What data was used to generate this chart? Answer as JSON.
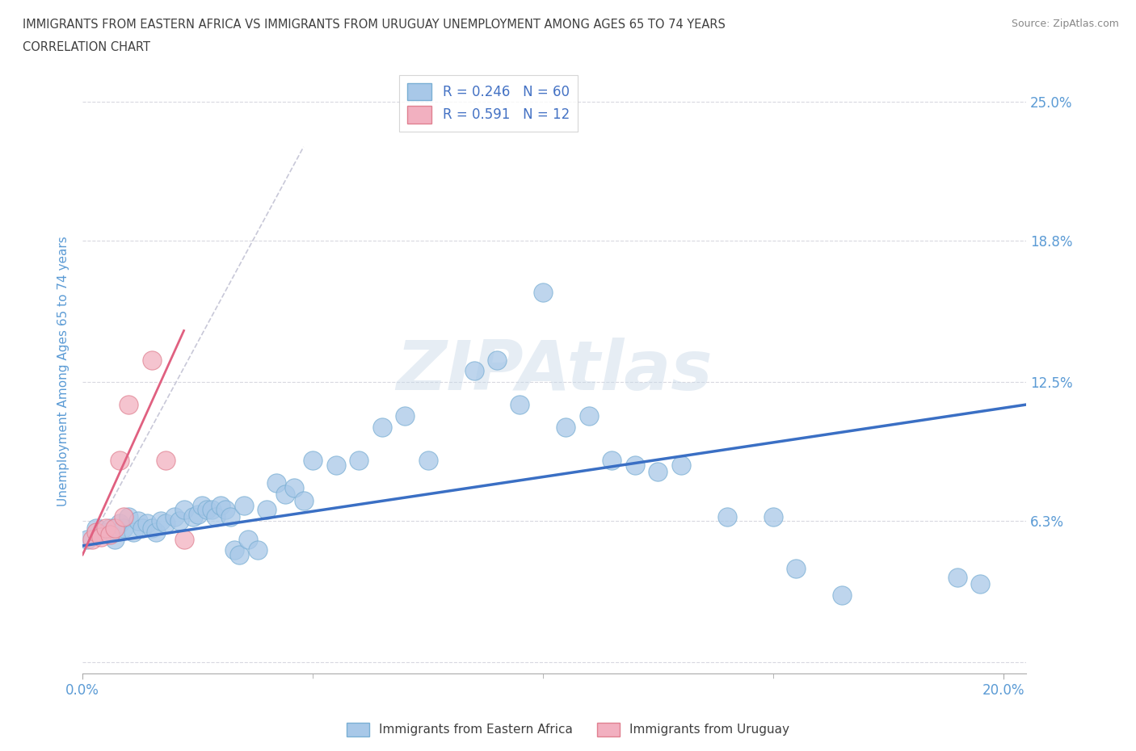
{
  "title_line1": "IMMIGRANTS FROM EASTERN AFRICA VS IMMIGRANTS FROM URUGUAY UNEMPLOYMENT AMONG AGES 65 TO 74 YEARS",
  "title_line2": "CORRELATION CHART",
  "source": "Source: ZipAtlas.com",
  "ylabel": "Unemployment Among Ages 65 to 74 years",
  "watermark": "ZIPAtlas",
  "xlim": [
    0.0,
    0.205
  ],
  "ylim": [
    -0.005,
    0.265
  ],
  "yticks": [
    0.0,
    0.063,
    0.125,
    0.188,
    0.25
  ],
  "ytick_labels_right": [
    "",
    "6.3%",
    "12.5%",
    "18.8%",
    "25.0%"
  ],
  "xticks": [
    0.0,
    0.2
  ],
  "xtick_labels": [
    "0.0%",
    "20.0%"
  ],
  "xtick_minor": [
    0.05,
    0.1,
    0.15
  ],
  "r_blue": "0.246",
  "n_blue": "60",
  "r_pink": "0.591",
  "n_pink": "12",
  "color_blue": "#a8c8e8",
  "color_blue_edge": "#7aafd4",
  "color_pink": "#f2b0c0",
  "color_pink_edge": "#e08090",
  "color_trendline_blue": "#3a6fc4",
  "color_trendline_pink": "#e06080",
  "color_dashed_trendline": "#c8c8d8",
  "title_color": "#404040",
  "tick_label_color": "#5b9bd5",
  "legend_text_color": "#4472c4",
  "blue_scatter_x": [
    0.001,
    0.003,
    0.005,
    0.006,
    0.007,
    0.008,
    0.009,
    0.01,
    0.011,
    0.012,
    0.013,
    0.014,
    0.015,
    0.016,
    0.017,
    0.018,
    0.02,
    0.021,
    0.022,
    0.024,
    0.025,
    0.026,
    0.027,
    0.028,
    0.029,
    0.03,
    0.031,
    0.032,
    0.033,
    0.034,
    0.035,
    0.036,
    0.038,
    0.04,
    0.042,
    0.044,
    0.046,
    0.048,
    0.05,
    0.055,
    0.06,
    0.065,
    0.07,
    0.075,
    0.085,
    0.09,
    0.095,
    0.1,
    0.105,
    0.11,
    0.115,
    0.12,
    0.125,
    0.13,
    0.14,
    0.15,
    0.155,
    0.165,
    0.19,
    0.195
  ],
  "blue_scatter_y": [
    0.055,
    0.06,
    0.058,
    0.06,
    0.055,
    0.062,
    0.06,
    0.065,
    0.058,
    0.063,
    0.06,
    0.062,
    0.06,
    0.058,
    0.063,
    0.062,
    0.065,
    0.063,
    0.068,
    0.065,
    0.066,
    0.07,
    0.068,
    0.068,
    0.065,
    0.07,
    0.068,
    0.065,
    0.05,
    0.048,
    0.07,
    0.055,
    0.05,
    0.068,
    0.08,
    0.075,
    0.078,
    0.072,
    0.09,
    0.088,
    0.09,
    0.105,
    0.11,
    0.09,
    0.13,
    0.135,
    0.115,
    0.165,
    0.105,
    0.11,
    0.09,
    0.088,
    0.085,
    0.088,
    0.065,
    0.065,
    0.042,
    0.03,
    0.038,
    0.035
  ],
  "pink_scatter_x": [
    0.002,
    0.003,
    0.004,
    0.005,
    0.006,
    0.007,
    0.008,
    0.009,
    0.01,
    0.015,
    0.018,
    0.022
  ],
  "pink_scatter_y": [
    0.055,
    0.058,
    0.056,
    0.06,
    0.057,
    0.06,
    0.09,
    0.065,
    0.115,
    0.135,
    0.09,
    0.055
  ],
  "blue_trend_x": [
    0.0,
    0.205
  ],
  "blue_trend_y": [
    0.052,
    0.115
  ],
  "pink_trend_x": [
    0.0,
    0.022
  ],
  "pink_trend_y": [
    0.048,
    0.148
  ],
  "dashed_trend_x": [
    0.0,
    0.048
  ],
  "dashed_trend_y": [
    0.048,
    0.23
  ],
  "grid_color": "#d8d8e0",
  "background_color": "#ffffff"
}
